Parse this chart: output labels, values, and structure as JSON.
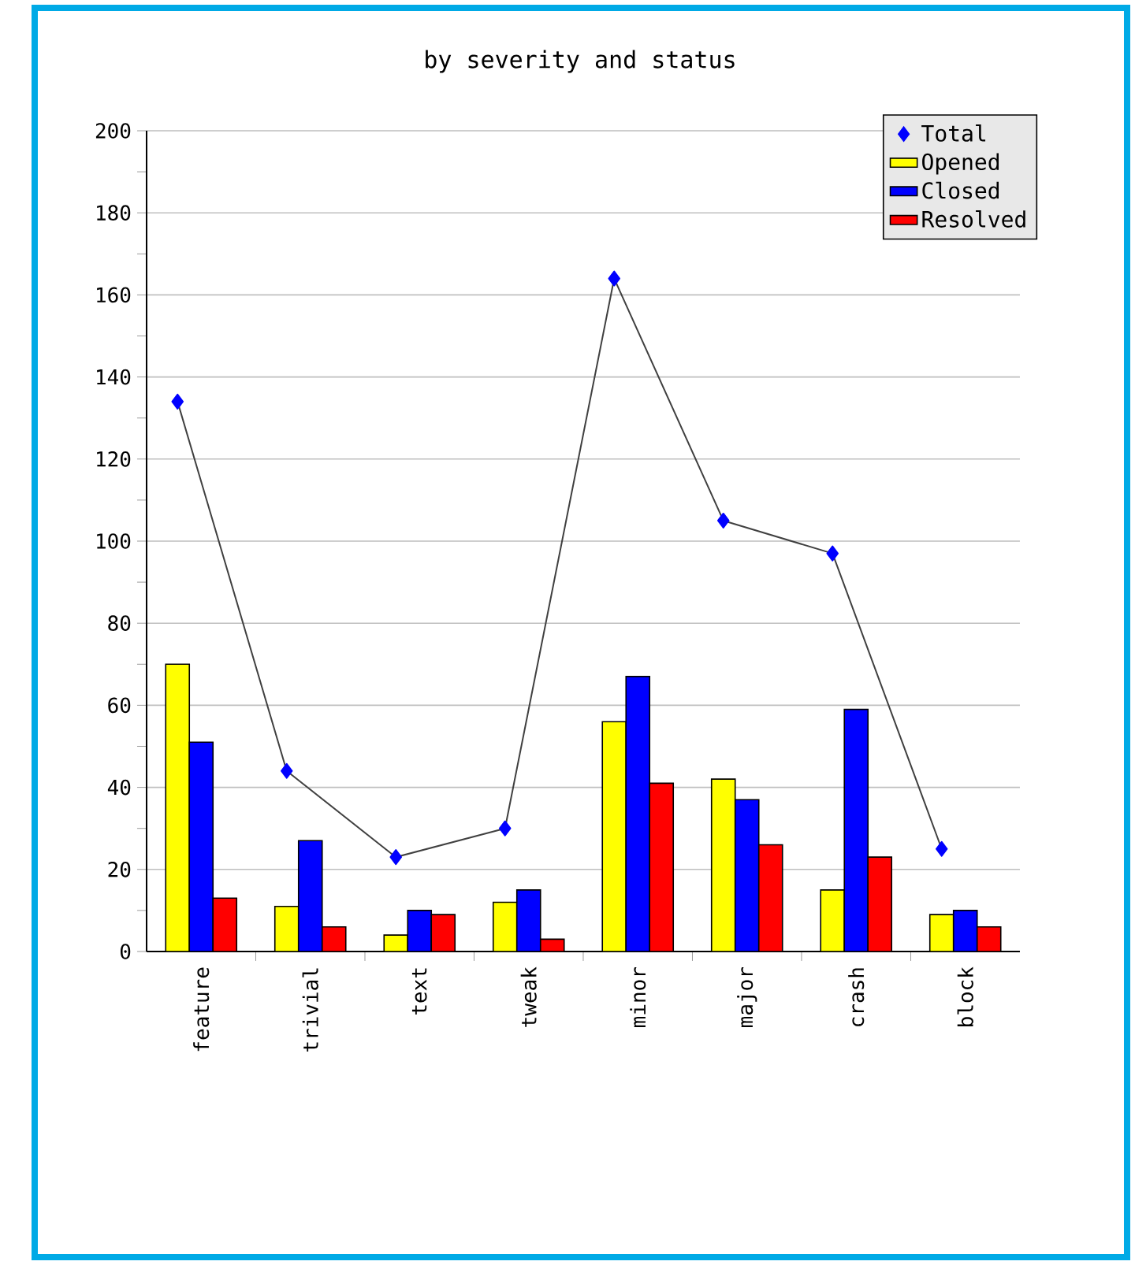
{
  "chart_data": {
    "type": "bar",
    "title": "by severity and status",
    "categories": [
      "feature",
      "trivial",
      "text",
      "tweak",
      "minor",
      "major",
      "crash",
      "block"
    ],
    "series": [
      {
        "name": "Total",
        "type": "line",
        "marker": "diamond",
        "color": "#0000ff",
        "values": [
          134,
          44,
          23,
          30,
          164,
          105,
          97,
          25
        ]
      },
      {
        "name": "Opened",
        "color": "#ffff00",
        "values": [
          70,
          11,
          4,
          12,
          56,
          42,
          15,
          9
        ]
      },
      {
        "name": "Closed",
        "color": "#0000ff",
        "values": [
          51,
          27,
          10,
          15,
          67,
          37,
          59,
          10
        ]
      },
      {
        "name": "Resolved",
        "color": "#ff0000",
        "values": [
          13,
          6,
          9,
          3,
          41,
          26,
          23,
          6
        ]
      }
    ],
    "ylim": [
      0,
      200
    ],
    "yticks": [
      0,
      20,
      40,
      60,
      80,
      100,
      120,
      140,
      160,
      180,
      200
    ],
    "grid": "y",
    "legend": "top right"
  }
}
